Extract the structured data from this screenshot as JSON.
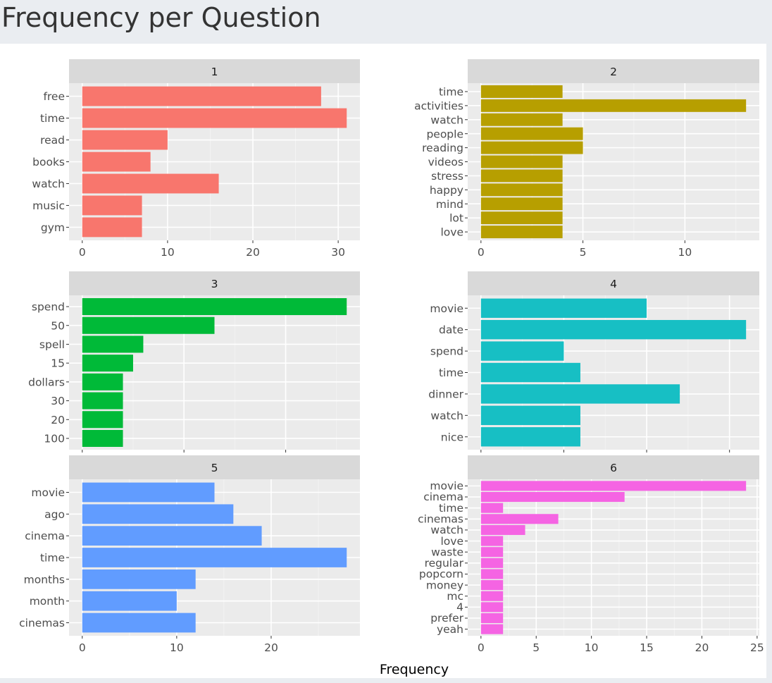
{
  "page": {
    "title": "Frequency per Question"
  },
  "chart_data": [
    {
      "type": "bar",
      "orientation": "horizontal",
      "facet": "1",
      "color": "#F8766D",
      "categories": [
        "free",
        "time",
        "read",
        "books",
        "watch",
        "music",
        "gym"
      ],
      "values": [
        28,
        31,
        10,
        8,
        16,
        7,
        7
      ],
      "x_ticks": [
        0,
        10,
        20,
        30
      ],
      "xlim": [
        -1.55,
        32.55
      ]
    },
    {
      "type": "bar",
      "orientation": "horizontal",
      "facet": "2",
      "color": "#B79F00",
      "categories": [
        "time",
        "activities",
        "watch",
        "people",
        "reading",
        "videos",
        "stress",
        "happy",
        "mind",
        "lot",
        "love"
      ],
      "values": [
        4,
        13,
        4,
        5,
        5,
        4,
        4,
        4,
        4,
        4,
        4
      ],
      "x_ticks": [
        0,
        5,
        10
      ],
      "xlim": [
        -0.65,
        13.65
      ]
    },
    {
      "type": "bar",
      "orientation": "horizontal",
      "facet": "3",
      "color": "#00BA38",
      "categories": [
        "spend",
        "50",
        "spell",
        "15",
        "dollars",
        "30",
        "20",
        "100"
      ],
      "values": [
        26,
        13,
        6,
        5,
        4,
        4,
        4,
        4
      ],
      "x_ticks": [
        0,
        10,
        20
      ],
      "xlim": [
        -1.3,
        27.3
      ]
    },
    {
      "type": "bar",
      "orientation": "horizontal",
      "facet": "4",
      "color": "#17BFC4",
      "categories": [
        "movie",
        "date",
        "spend",
        "time",
        "dinner",
        "watch",
        "nice"
      ],
      "values": [
        10,
        16,
        5,
        6,
        12,
        6,
        6
      ],
      "x_ticks": [
        0,
        5,
        10,
        15
      ],
      "xlim": [
        -0.8,
        16.8
      ]
    },
    {
      "type": "bar",
      "orientation": "horizontal",
      "facet": "5",
      "color": "#619CFF",
      "categories": [
        "movie",
        "ago",
        "cinema",
        "time",
        "months",
        "month",
        "cinemas"
      ],
      "values": [
        14,
        16,
        19,
        28,
        12,
        10,
        12
      ],
      "x_ticks": [
        0,
        10,
        20
      ],
      "xlim": [
        -1.4,
        29.4
      ]
    },
    {
      "type": "bar",
      "orientation": "horizontal",
      "facet": "6",
      "color": "#F564E3",
      "categories": [
        "movie",
        "cinema",
        "time",
        "cinemas",
        "watch",
        "love",
        "waste",
        "regular",
        "popcorn",
        "money",
        "mc",
        "4",
        "prefer",
        "yeah"
      ],
      "values": [
        24,
        13,
        2,
        7,
        4,
        2,
        2,
        2,
        2,
        2,
        2,
        2,
        2,
        2
      ],
      "x_ticks": [
        0,
        5,
        10,
        15,
        20,
        25
      ],
      "xlim": [
        -1.2,
        25.2
      ]
    }
  ],
  "xlabel": "Frequency"
}
